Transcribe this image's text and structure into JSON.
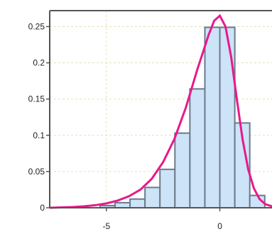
{
  "chart_data": {
    "type": "bar",
    "title": "",
    "xlabel": "",
    "ylabel": "",
    "xlim": [
      -7.5,
      2.3
    ],
    "ylim": [
      0,
      0.272
    ],
    "grid": true,
    "x_ticks": [
      {
        "value": -5,
        "label": "-5"
      },
      {
        "value": 0,
        "label": "0"
      }
    ],
    "y_ticks": [
      {
        "value": 0,
        "label": "0"
      },
      {
        "value": 0.05,
        "label": "0.05"
      },
      {
        "value": 0.1,
        "label": "0.1"
      },
      {
        "value": 0.15,
        "label": "0.15"
      },
      {
        "value": 0.2,
        "label": "0.2"
      },
      {
        "value": 0.25,
        "label": "0.25"
      }
    ],
    "histogram": {
      "bin_width": 0.66,
      "bins": [
        {
          "x0": -5.28,
          "value": 0.003
        },
        {
          "x0": -4.62,
          "value": 0.007
        },
        {
          "x0": -3.96,
          "value": 0.012
        },
        {
          "x0": -3.3,
          "value": 0.028
        },
        {
          "x0": -2.64,
          "value": 0.053
        },
        {
          "x0": -1.98,
          "value": 0.103
        },
        {
          "x0": -1.32,
          "value": 0.164
        },
        {
          "x0": -0.66,
          "value": 0.249
        },
        {
          "x0": 0.0,
          "value": 0.249
        },
        {
          "x0": 0.66,
          "value": 0.117
        },
        {
          "x0": 1.32,
          "value": 0.017
        }
      ]
    },
    "series": [
      {
        "type": "line",
        "x": [
          -7.5,
          -7.0,
          -6.5,
          -6.0,
          -5.5,
          -5.0,
          -4.5,
          -4.0,
          -3.5,
          -3.0,
          -2.5,
          -2.0,
          -1.5,
          -1.0,
          -0.5,
          -0.25,
          0.0,
          0.25,
          0.5,
          0.75,
          1.0,
          1.25,
          1.5,
          1.75,
          2.0,
          2.3
        ],
        "y": [
          0.0,
          0.0005,
          0.001,
          0.002,
          0.0035,
          0.006,
          0.01,
          0.016,
          0.025,
          0.04,
          0.063,
          0.095,
          0.138,
          0.19,
          0.238,
          0.258,
          0.265,
          0.25,
          0.208,
          0.15,
          0.095,
          0.053,
          0.027,
          0.012,
          0.005,
          0.002
        ]
      }
    ],
    "colors": {
      "bar_fill": "#cde3f7",
      "bar_edge": "#6b7b8c",
      "curve": "#e8198b",
      "grid": "#e6e0b8",
      "axis": "#555555"
    }
  }
}
